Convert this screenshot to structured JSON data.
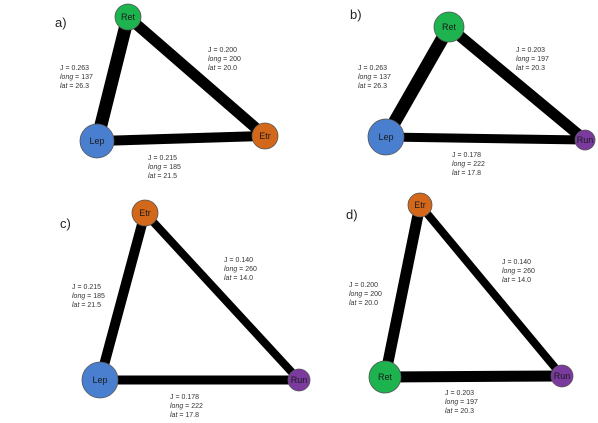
{
  "colors": {
    "Ret": "#1db34e",
    "Lep": "#4a7fd0",
    "Etr": "#d4681a",
    "Run": "#7a3a9e",
    "edge": "#000000"
  },
  "panels": [
    {
      "letter": "a)",
      "nodes": [
        {
          "id": "Ret",
          "label": "Ret"
        },
        {
          "id": "Lep",
          "label": "Lep"
        },
        {
          "id": "Etr",
          "label": "Etr"
        }
      ],
      "edges": [
        {
          "from": "Ret",
          "to": "Lep",
          "J": "J = 0.263",
          "long": "137",
          "lat": "26.3"
        },
        {
          "from": "Ret",
          "to": "Etr",
          "J": "J = 0.200",
          "long": "200",
          "lat": "20.0"
        },
        {
          "from": "Lep",
          "to": "Etr",
          "J": "J = 0.215",
          "long": "185",
          "lat": "21.5"
        }
      ]
    },
    {
      "letter": "b)",
      "nodes": [
        {
          "id": "Ret",
          "label": "Ret"
        },
        {
          "id": "Lep",
          "label": "Lep"
        },
        {
          "id": "Run",
          "label": "Run"
        }
      ],
      "edges": [
        {
          "from": "Ret",
          "to": "Lep",
          "J": "J = 0.263",
          "long": "137",
          "lat": "26.3"
        },
        {
          "from": "Ret",
          "to": "Run",
          "J": "J = 0.203",
          "long": "197",
          "lat": "20.3"
        },
        {
          "from": "Lep",
          "to": "Run",
          "J": "J = 0.178",
          "long": "222",
          "lat": "17.8"
        }
      ]
    },
    {
      "letter": "c)",
      "nodes": [
        {
          "id": "Etr",
          "label": "Etr"
        },
        {
          "id": "Lep",
          "label": "Lep"
        },
        {
          "id": "Run",
          "label": "Run"
        }
      ],
      "edges": [
        {
          "from": "Etr",
          "to": "Lep",
          "J": "J = 0.215",
          "long": "185",
          "lat": "21.5"
        },
        {
          "from": "Etr",
          "to": "Run",
          "J": "J = 0.140",
          "long": "260",
          "lat": "14.0"
        },
        {
          "from": "Lep",
          "to": "Run",
          "J": "J = 0.178",
          "long": "222",
          "lat": "17.8"
        }
      ]
    },
    {
      "letter": "d)",
      "nodes": [
        {
          "id": "Etr",
          "label": "Etr"
        },
        {
          "id": "Ret",
          "label": "Ret"
        },
        {
          "id": "Run",
          "label": "Run"
        }
      ],
      "edges": [
        {
          "from": "Etr",
          "to": "Ret",
          "J": "J = 0.200",
          "long": "200",
          "lat": "20.0"
        },
        {
          "from": "Etr",
          "to": "Run",
          "J": "J = 0.140",
          "long": "260",
          "lat": "14.0"
        },
        {
          "from": "Ret",
          "to": "Run",
          "J": "J = 0.203",
          "long": "197",
          "lat": "20.3"
        }
      ]
    }
  ],
  "text_keys": {
    "long": "long",
    "lat": "lat"
  }
}
